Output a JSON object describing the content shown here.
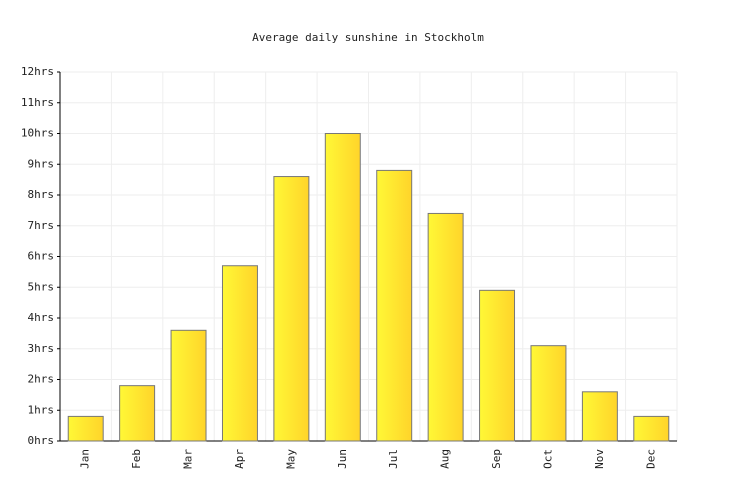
{
  "chart_data": {
    "type": "bar",
    "title": "Average daily sunshine in Stockholm",
    "categories": [
      "Jan",
      "Feb",
      "Mar",
      "Apr",
      "May",
      "Jun",
      "Jul",
      "Aug",
      "Sep",
      "Oct",
      "Nov",
      "Dec"
    ],
    "values": [
      0.8,
      1.8,
      3.6,
      5.7,
      8.6,
      10.0,
      8.8,
      7.4,
      4.9,
      3.1,
      1.6,
      0.8
    ],
    "color": "#ffd42a",
    "ylim": [
      0,
      12
    ],
    "yticks": [
      {
        "value": 0,
        "label": "0hrs"
      },
      {
        "value": 1,
        "label": "1hrs"
      },
      {
        "value": 2,
        "label": "2hrs"
      },
      {
        "value": 3,
        "label": "3hrs"
      },
      {
        "value": 4,
        "label": "4hrs"
      },
      {
        "value": 5,
        "label": "5hrs"
      },
      {
        "value": 6,
        "label": "6hrs"
      },
      {
        "value": 7,
        "label": "7hrs"
      },
      {
        "value": 8,
        "label": "8hrs"
      },
      {
        "value": 9,
        "label": "9hrs"
      },
      {
        "value": 10,
        "label": "10hrs"
      },
      {
        "value": 11,
        "label": "11hrs"
      },
      {
        "value": 12,
        "label": "12hrs"
      }
    ],
    "grid": true
  }
}
